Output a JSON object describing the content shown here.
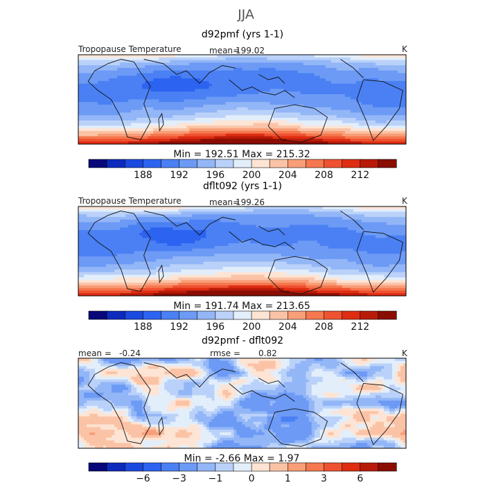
{
  "title": "JJA",
  "panels": [
    {
      "subtitle": "d92pmf (yrs 1-1)",
      "left_label": "Tropopause Temperature",
      "stat_label": "mean=",
      "stat_value": "199.02",
      "stat2_label": "",
      "stat2_value": "",
      "units": "K",
      "min_max_text": "Min = 192.51 Max = 215.32",
      "min": 192.51,
      "max": 215.32,
      "colorbar": {
        "levels": [
          184,
          186,
          188,
          190,
          192,
          194,
          196,
          198,
          200,
          202,
          204,
          206,
          208,
          210,
          212,
          214,
          216
        ],
        "ticks": [
          "188",
          "192",
          "196",
          "200",
          "204",
          "208",
          "212"
        ],
        "tick_values": [
          188,
          192,
          196,
          200,
          204,
          208,
          212
        ]
      }
    },
    {
      "subtitle": "dflt092 (yrs 1-1)",
      "left_label": "Tropopause Temperature",
      "stat_label": "mean=",
      "stat_value": "199.26",
      "stat2_label": "",
      "stat2_value": "",
      "units": "K",
      "min_max_text": "Min = 191.74 Max = 213.65",
      "min": 191.74,
      "max": 213.65,
      "colorbar": {
        "levels": [
          184,
          186,
          188,
          190,
          192,
          194,
          196,
          198,
          200,
          202,
          204,
          206,
          208,
          210,
          212,
          214,
          216
        ],
        "ticks": [
          "188",
          "192",
          "196",
          "200",
          "204",
          "208",
          "212"
        ],
        "tick_values": [
          188,
          192,
          196,
          200,
          204,
          208,
          212
        ]
      }
    },
    {
      "subtitle": "d92pmf - dflt092",
      "left_label": "mean =",
      "stat_label": "",
      "stat_value": "-0.24",
      "stat2_label": "rmse =",
      "stat2_value": "0.82",
      "units": "K",
      "min_max_text": "Min = -2.66 Max = 1.97",
      "min": -2.66,
      "max": 1.97,
      "colorbar": {
        "levels": [
          -9,
          -8,
          -6,
          -5,
          -3,
          -2,
          -1,
          -0.5,
          0,
          0.5,
          1,
          2,
          3,
          5,
          6,
          8,
          9
        ],
        "ticks": [
          "−6",
          "−3",
          "−1",
          "0",
          "1",
          "3",
          "6"
        ],
        "tick_values": [
          -6,
          -3,
          -1,
          0,
          1,
          3,
          6
        ]
      }
    }
  ],
  "palette": [
    "#08087a",
    "#0c2bbd",
    "#1a49e0",
    "#2c63f0",
    "#4a80f3",
    "#6c9af5",
    "#93b6f7",
    "#bad2f9",
    "#e3eefb",
    "#fde4d4",
    "#fbc3a6",
    "#f89e78",
    "#f5784f",
    "#ef5231",
    "#de2d12",
    "#b81a08",
    "#8a0d02"
  ],
  "chart_data": [
    {
      "type": "heatmap",
      "title": "d92pmf (yrs 1-1)",
      "variable": "Tropopause Temperature",
      "units": "K",
      "mean": 199.02,
      "min": 192.51,
      "max": 215.32,
      "colorbar_ticks": [
        188,
        192,
        196,
        200,
        204,
        208,
        212
      ]
    },
    {
      "type": "heatmap",
      "title": "dflt092 (yrs 1-1)",
      "variable": "Tropopause Temperature",
      "units": "K",
      "mean": 199.26,
      "min": 191.74,
      "max": 213.65,
      "colorbar_ticks": [
        188,
        192,
        196,
        200,
        204,
        208,
        212
      ]
    },
    {
      "type": "heatmap",
      "title": "d92pmf - dflt092",
      "units": "K",
      "mean": -0.24,
      "rmse": 0.82,
      "min": -2.66,
      "max": 1.97,
      "colorbar_ticks": [
        -6,
        -3,
        -1,
        0,
        1,
        3,
        6
      ]
    }
  ]
}
